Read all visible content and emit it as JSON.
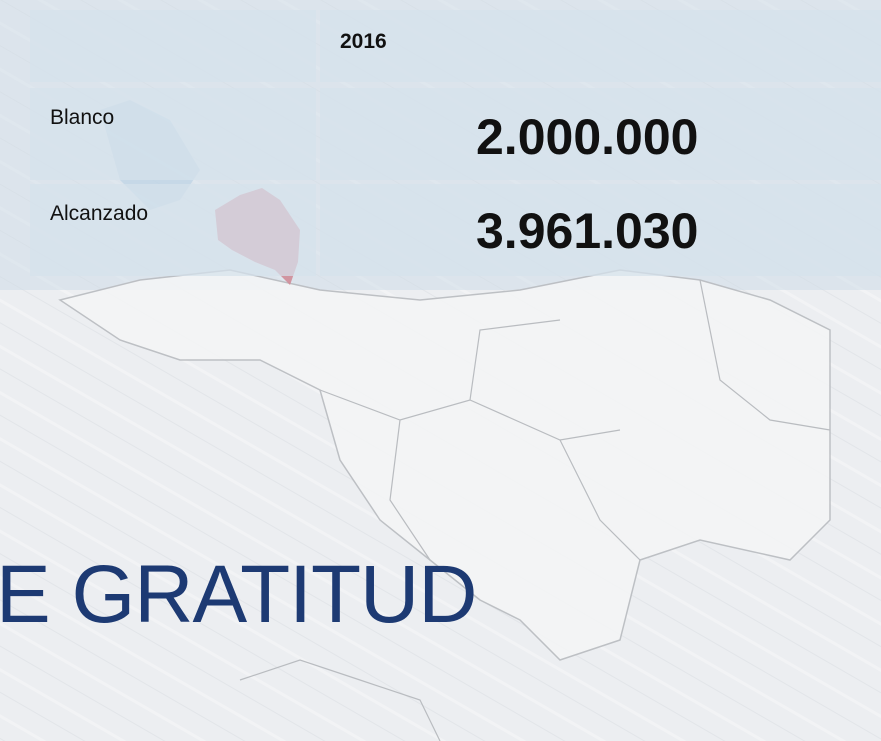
{
  "table": {
    "header": [
      "2016"
    ],
    "rows": [
      [
        "Blanco",
        "2.000.000"
      ],
      [
        "Alcanzado",
        "3.961.030"
      ]
    ]
  },
  "closing_text": "E GRATITUD"
}
